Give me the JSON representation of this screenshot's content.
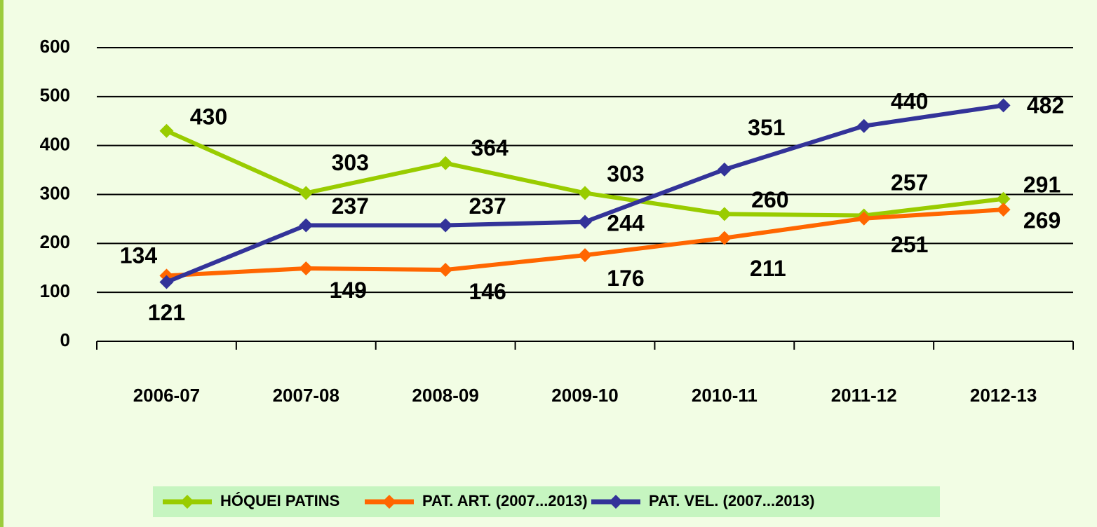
{
  "chart_data": {
    "type": "line",
    "categories": [
      "2006-07",
      "2007-08",
      "2008-09",
      "2009-10",
      "2010-11",
      "2011-12",
      "2012-13"
    ],
    "series": [
      {
        "name": "HÓQUEI PATINS",
        "color": "#99cc00",
        "values": [
          430,
          303,
          364,
          303,
          260,
          257,
          291
        ]
      },
      {
        "name": "PAT. ART. (2007...2013)",
        "color": "#ff6600",
        "values": [
          134,
          149,
          146,
          176,
          211,
          251,
          269
        ]
      },
      {
        "name": "PAT. VEL. (2007...2013)",
        "color": "#333399",
        "values": [
          121,
          237,
          237,
          244,
          351,
          440,
          482
        ]
      }
    ],
    "ylim": [
      0,
      600
    ],
    "yticks": [
      0,
      100,
      200,
      300,
      400,
      500,
      600
    ],
    "grid": true,
    "legend": "bottom"
  }
}
